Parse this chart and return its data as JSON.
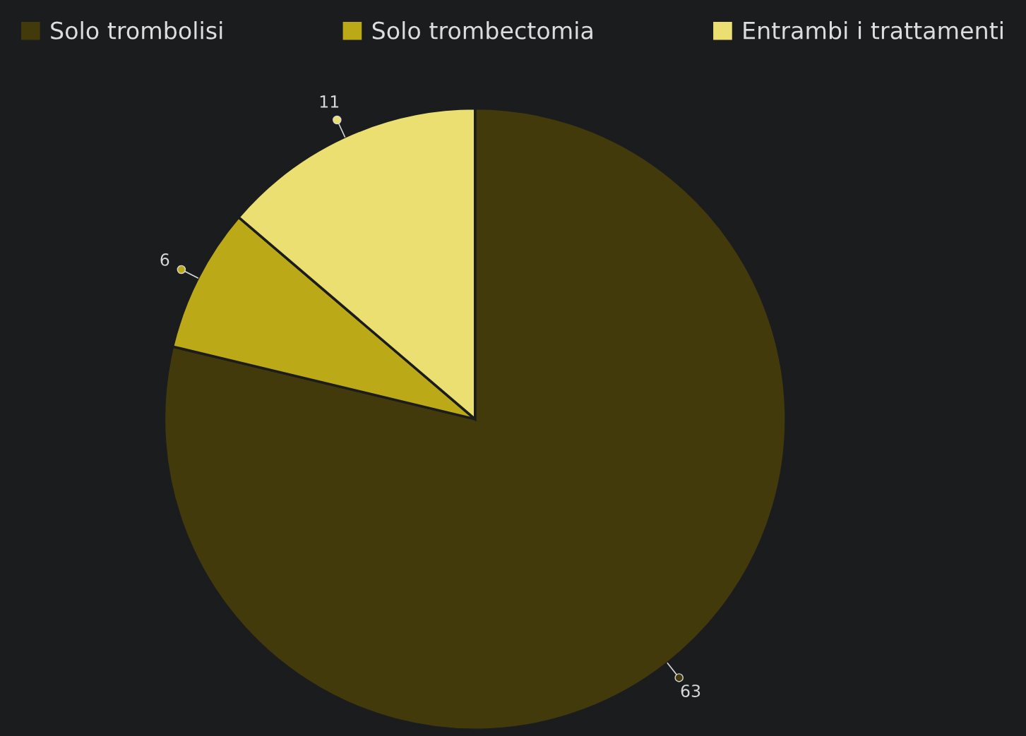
{
  "chart_data": {
    "type": "pie",
    "categories": [
      "Solo trombolisi",
      "Solo trombectomia",
      "Entrambi i trattamenti"
    ],
    "values": [
      63,
      6,
      11
    ],
    "colors": [
      "#433a0b",
      "#bba918",
      "#ecdf72"
    ],
    "data_labels": true,
    "legend": "top"
  }
}
